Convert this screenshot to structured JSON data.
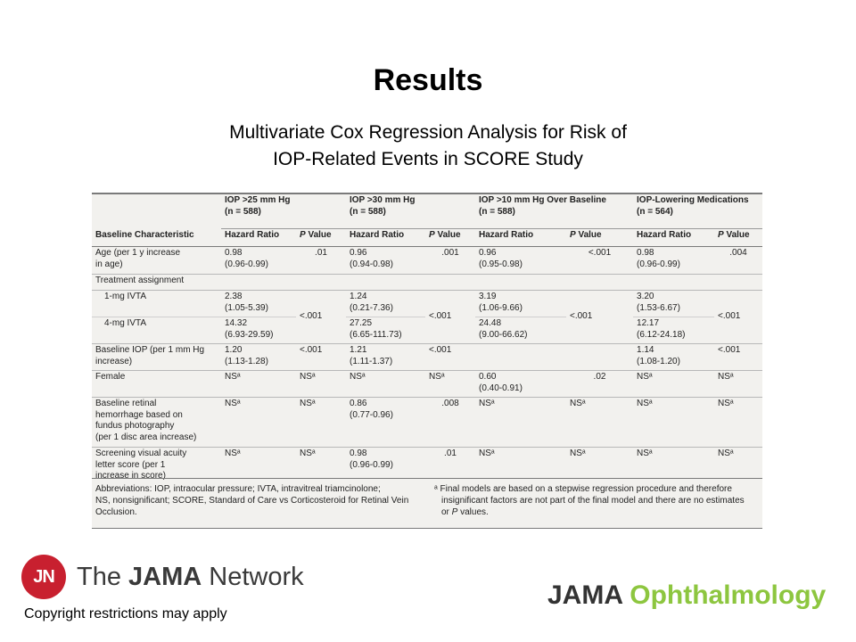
{
  "slide": {
    "title": "Results",
    "subtitle_line1": "Multivariate Cox Regression Analysis for Risk of",
    "subtitle_line2": "IOP-Related Events in SCORE Study"
  },
  "table": {
    "groups": [
      {
        "line1": "IOP >25 mm Hg",
        "line2": "(n = 588)"
      },
      {
        "line1": "IOP >30 mm Hg",
        "line2": "(n = 588)"
      },
      {
        "line1": "IOP >10 mm Hg Over Baseline",
        "line2": "(n = 588)"
      },
      {
        "line1": "IOP-Lowering Medications",
        "line2": "(n = 564)"
      }
    ],
    "headers": {
      "baseline": "Baseline Characteristic",
      "hr": "Hazard Ratio",
      "p_italic": "P",
      "p_rest": " Value"
    },
    "rows": {
      "age": {
        "label1": "Age (per 1 y increase",
        "label2": "in age)",
        "c": [
          {
            "hr": "0.98",
            "ci": "(0.96-0.99)",
            "p": ".01"
          },
          {
            "hr": "0.96",
            "ci": "(0.94-0.98)",
            "p": ".001"
          },
          {
            "hr": "0.96",
            "ci": "(0.95-0.98)",
            "p": "<.001"
          },
          {
            "hr": "0.98",
            "ci": "(0.96-0.99)",
            "p": ".004"
          }
        ]
      },
      "treatment": {
        "label": "Treatment assignment"
      },
      "ivta1": {
        "label": "1-mg IVTA",
        "c": [
          {
            "hr": "2.38",
            "ci": "(1.05-5.39)"
          },
          {
            "hr": "1.24",
            "ci": "(0.21-7.36)"
          },
          {
            "hr": "3.19",
            "ci": "(1.06-9.66)"
          },
          {
            "hr": "3.20",
            "ci": "(1.53-6.67)"
          }
        ]
      },
      "ivta4": {
        "label": "4-mg IVTA",
        "c": [
          {
            "hr": "14.32",
            "ci": "(6.93-29.59)"
          },
          {
            "hr": "27.25",
            "ci": "(6.65-111.73)"
          },
          {
            "hr": "24.48",
            "ci": "(9.00-66.62)"
          },
          {
            "hr": "12.17",
            "ci": "(6.12-24.18)"
          }
        ]
      },
      "treatment_p": [
        "<.001",
        "<.001",
        "<.001",
        "<.001"
      ],
      "baseline_iop": {
        "label1": "Baseline IOP (per 1 mm Hg",
        "label2": "increase)",
        "c": [
          {
            "hr": "1.20",
            "ci": "(1.13-1.28)",
            "p": "<.001"
          },
          {
            "hr": "1.21",
            "ci": "(1.11-1.37)",
            "p": "<.001"
          },
          {
            "hr": "",
            "ci": "",
            "p": ""
          },
          {
            "hr": "1.14",
            "ci": "(1.08-1.20)",
            "p": "<.001"
          }
        ]
      },
      "female": {
        "label": "Female",
        "c": [
          {
            "hr": "NSᵃ",
            "ci": "",
            "p": "NSᵃ"
          },
          {
            "hr": "NSᵃ",
            "ci": "",
            "p": "NSᵃ"
          },
          {
            "hr": "0.60",
            "ci": "(0.40-0.91)",
            "p": ".02"
          },
          {
            "hr": "NSᵃ",
            "ci": "",
            "p": "NSᵃ"
          }
        ]
      },
      "retinal": {
        "label1": "Baseline retinal",
        "label2": "hemorrhage based on",
        "label3": "fundus photography",
        "label4": "(per 1 disc area increase)",
        "c": [
          {
            "hr": "NSᵃ",
            "ci": "",
            "p": "NSᵃ"
          },
          {
            "hr": "0.86",
            "ci": "(0.77-0.96)",
            "p": ".008"
          },
          {
            "hr": "NSᵃ",
            "ci": "",
            "p": "NSᵃ"
          },
          {
            "hr": "NSᵃ",
            "ci": "",
            "p": "NSᵃ"
          }
        ]
      },
      "visual": {
        "label1": "Screening visual acuity",
        "label2": "letter score (per 1",
        "label3": "increase in score)",
        "c": [
          {
            "hr": "NSᵃ",
            "ci": "",
            "p": "NSᵃ"
          },
          {
            "hr": "0.98",
            "ci": "(0.96-0.99)",
            "p": ".01"
          },
          {
            "hr": "NSᵃ",
            "ci": "",
            "p": "NSᵃ"
          },
          {
            "hr": "NSᵃ",
            "ci": "",
            "p": "NSᵃ"
          }
        ]
      }
    },
    "footnotes": {
      "abbrev_line1": "Abbreviations: IOP, intraocular pressure; IVTA, intravitreal triamcinolone;",
      "abbrev_line2": "NS, nonsignificant; SCORE, Standard of Care vs Corticosteroid for Retinal Vein",
      "abbrev_line3": "Occlusion.",
      "note_mark": "ᵃ",
      "note_text1": " Final models are based on a stepwise regression procedure and therefore",
      "note_text2": "insignificant factors are not part of the final model and there are no estimates",
      "note_text3_pre": "or ",
      "note_text3_italic": "P",
      "note_text3_post": " values."
    }
  },
  "footer": {
    "jn_mark": "JN",
    "network_the": "The ",
    "network_jama": "JAMA",
    "network_word": " Network",
    "journal_jama": "JAMA ",
    "journal_oph": "Ophthalmology",
    "copyright": "Copyright restrictions may apply"
  }
}
